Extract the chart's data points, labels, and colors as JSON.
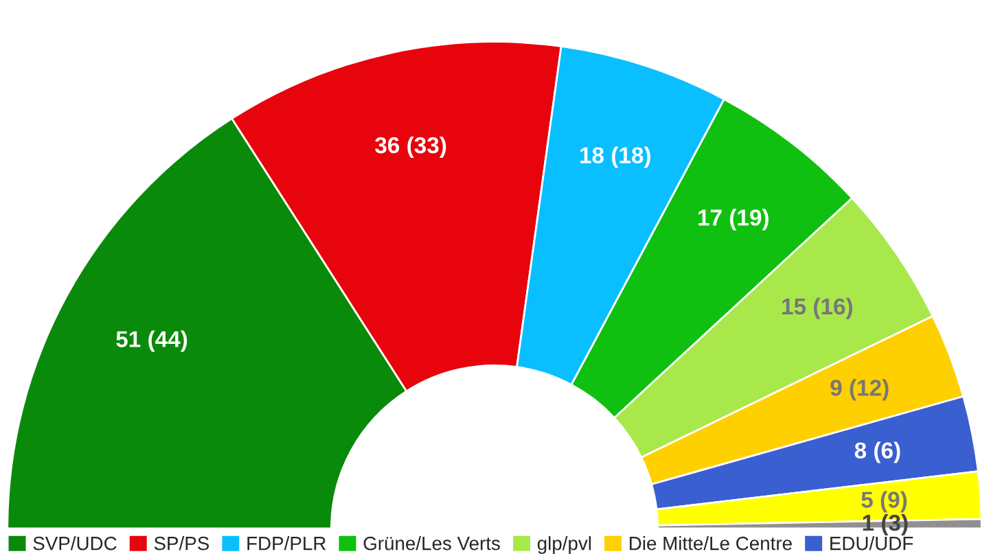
{
  "chart_data": {
    "type": "donut",
    "categories": [
      "SVP/UDC",
      "SP/PS",
      "FDP/PLR",
      "Grüne/Les Verts",
      "glp/pvl",
      "Die Mitte/Le Centre",
      "EDU/UDF",
      null,
      null
    ],
    "values": [
      51,
      36,
      18,
      17,
      15,
      9,
      8,
      5,
      1
    ],
    "colors": [
      "#0a8a0a",
      "#e8040c",
      "#0abfff",
      "#10c010",
      "#a8e84a",
      "#ffd000",
      "#3a5fd0",
      "#ffff00",
      "#909090"
    ],
    "value_labels": [
      "51 (44)",
      "36 (33)",
      "18 (18)",
      "17 (19)",
      "15 (16)",
      "9 (12)",
      "8 (6)",
      "5 (9)",
      "1 (3)"
    ],
    "legend": "bottom"
  }
}
